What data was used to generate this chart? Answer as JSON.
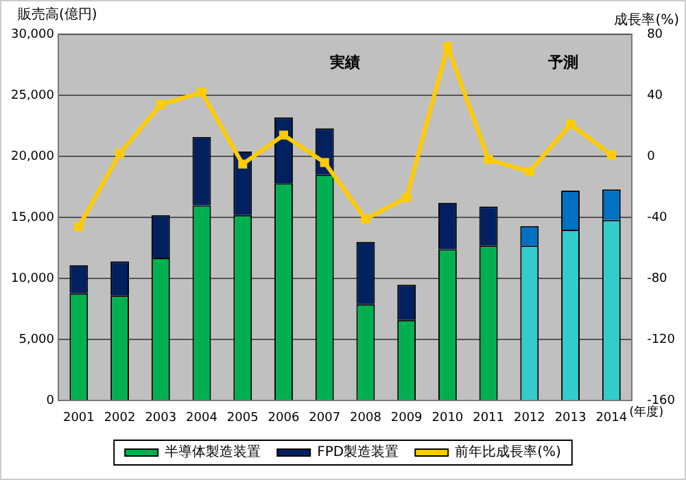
{
  "chart_data": {
    "type": "bar",
    "stacked": true,
    "categories": [
      "2001",
      "2002",
      "2003",
      "2004",
      "2005",
      "2006",
      "2007",
      "2008",
      "2009",
      "2010",
      "2011",
      "2012",
      "2013",
      "2014"
    ],
    "series": [
      {
        "name": "半導体製造装置",
        "color": "#00b050",
        "colors": [
          "#00b050",
          "#00b050",
          "#00b050",
          "#00b050",
          "#00b050",
          "#00b050",
          "#00b050",
          "#00b050",
          "#00b050",
          "#00b050",
          "#00b050",
          "#33cccc",
          "#33cccc",
          "#33cccc"
        ],
        "values": [
          8800,
          8600,
          11700,
          16000,
          15200,
          17800,
          18500,
          7900,
          6600,
          12400,
          12700,
          12700,
          14000,
          14800
        ]
      },
      {
        "name": "FPD製造装置",
        "color": "#002060",
        "colors": [
          "#002060",
          "#002060",
          "#002060",
          "#002060",
          "#002060",
          "#002060",
          "#002060",
          "#002060",
          "#002060",
          "#002060",
          "#002060",
          "#0070c0",
          "#0070c0",
          "#0070c0"
        ],
        "values": [
          2300,
          2800,
          3500,
          5600,
          5200,
          5400,
          3800,
          5100,
          2900,
          3800,
          3200,
          1600,
          3200,
          2500
        ]
      },
      {
        "name": "前年比成長率(%)",
        "type": "line",
        "axis": "y2",
        "color": "#ffcc00",
        "values": [
          -46,
          2,
          34,
          42,
          -5,
          14,
          -4,
          -41,
          -27,
          72,
          -2,
          -10,
          21,
          1
        ]
      }
    ],
    "ylabel": "販売高(億円)",
    "y2label": "成長率(%)",
    "xlabel": "(年度)",
    "annotations": [
      "実績",
      "予測"
    ],
    "ylim": [
      0,
      30000
    ],
    "yticks": [
      0,
      {
        "value": 5000,
        "label": "5,000"
      },
      {
        "value": 10000,
        "label": "10,000"
      },
      {
        "value": 15000,
        "label": "15,000"
      },
      {
        "value": 20000,
        "label": "20,000"
      },
      {
        "value": 25000,
        "label": "25,000"
      },
      {
        "value": 30000,
        "label": "30,000"
      }
    ],
    "y2lim": [
      -160,
      80
    ],
    "y2ticks": [
      -160,
      -120,
      -80,
      -40,
      0,
      40,
      80
    ],
    "grid": "y",
    "legend": "bottom",
    "marker": "square",
    "line_style": "solid"
  }
}
